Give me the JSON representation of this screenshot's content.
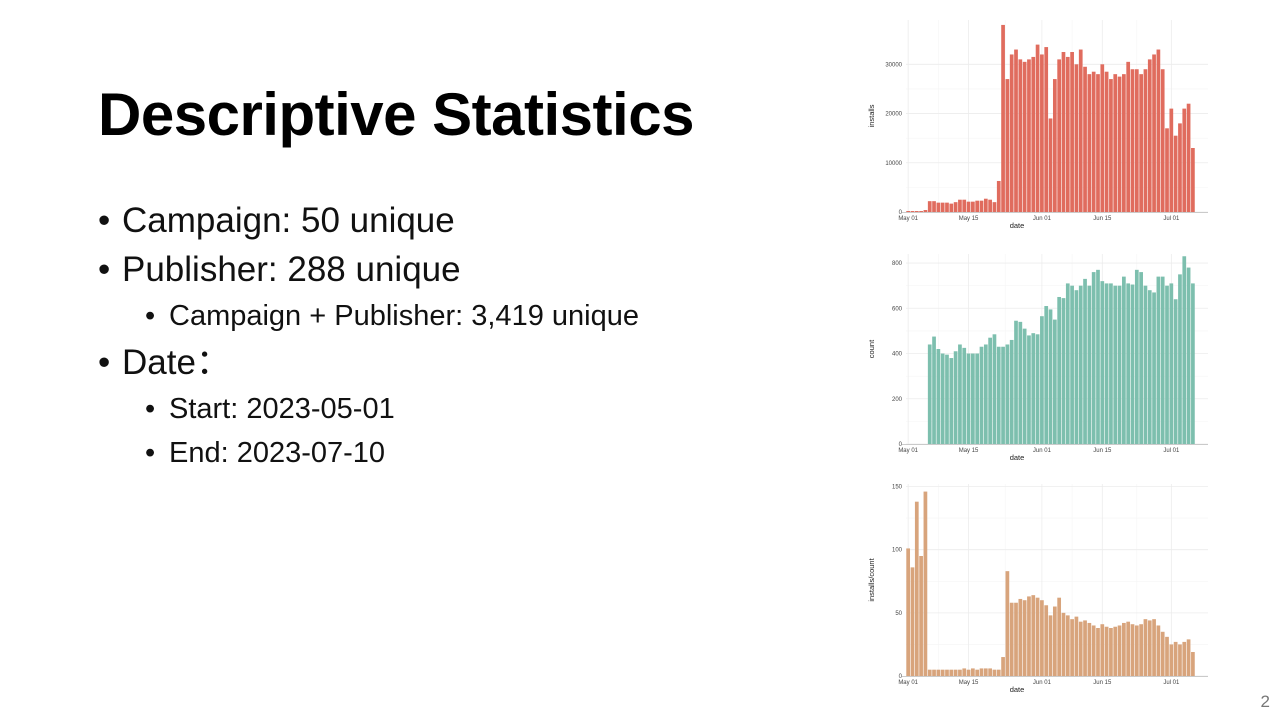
{
  "slide": {
    "title": "Descriptive Statistics",
    "page_number": "2",
    "bullets": [
      {
        "level": 1,
        "text": "Campaign: 50 unique"
      },
      {
        "level": 1,
        "text": "Publisher: 288 unique"
      },
      {
        "level": 2,
        "text": "Campaign + Publisher: 3,419 unique"
      },
      {
        "level": 1,
        "text": "Date："
      },
      {
        "level": 2,
        "text": "Start: 2023-05-01"
      },
      {
        "level": 2,
        "text": "End: 2023-07-10"
      }
    ],
    "bullet_glyph": "•"
  },
  "chart_data": [
    {
      "type": "bar",
      "xlabel": "date",
      "ylabel": "installs",
      "color": "#E06C5E",
      "ylim": [
        0,
        39000
      ],
      "yticks": [
        0,
        10000,
        20000,
        30000
      ],
      "xticks": [
        {
          "day": 0,
          "label": "May 01"
        },
        {
          "day": 14,
          "label": "May 15"
        },
        {
          "day": 31,
          "label": "Jun 01"
        },
        {
          "day": 45,
          "label": "Jun 15"
        },
        {
          "day": 61,
          "label": "Jul 01"
        }
      ],
      "start_day": 0,
      "values": [
        200,
        200,
        200,
        200,
        400,
        2200,
        2200,
        1900,
        1900,
        1900,
        1700,
        2000,
        2500,
        2500,
        2100,
        2100,
        2300,
        2300,
        2700,
        2500,
        2000,
        6300,
        38000,
        27000,
        32000,
        33000,
        31000,
        30500,
        31000,
        31500,
        34000,
        32000,
        33500,
        19000,
        27000,
        31000,
        32500,
        31500,
        32500,
        30000,
        33000,
        29500,
        28000,
        28500,
        28000,
        30000,
        28500,
        27000,
        28000,
        27500,
        28000,
        30500,
        29000,
        29000,
        28000,
        29000,
        31000,
        32000,
        33000,
        29000,
        17000,
        21000,
        15500,
        18000,
        21000,
        22000,
        13000
      ]
    },
    {
      "type": "bar",
      "xlabel": "date",
      "ylabel": "count",
      "color": "#7DBFAE",
      "ylim": [
        0,
        840
      ],
      "yticks": [
        0,
        200,
        400,
        600,
        800
      ],
      "xticks": [
        {
          "day": 0,
          "label": "May 01"
        },
        {
          "day": 14,
          "label": "May 15"
        },
        {
          "day": 31,
          "label": "Jun 01"
        },
        {
          "day": 45,
          "label": "Jun 15"
        },
        {
          "day": 61,
          "label": "Jul 01"
        }
      ],
      "start_day": 5,
      "values": [
        440,
        475,
        420,
        400,
        395,
        380,
        410,
        440,
        425,
        400,
        400,
        400,
        430,
        440,
        470,
        485,
        430,
        430,
        440,
        460,
        545,
        540,
        510,
        480,
        490,
        485,
        565,
        610,
        595,
        550,
        650,
        645,
        710,
        700,
        680,
        700,
        730,
        700,
        760,
        770,
        720,
        710,
        710,
        700,
        700,
        740,
        710,
        705,
        770,
        760,
        700,
        680,
        670,
        740,
        740,
        700,
        710,
        640,
        750,
        830,
        780,
        710
      ]
    },
    {
      "type": "bar",
      "xlabel": "date",
      "ylabel": "installs/count",
      "color": "#D8A47C",
      "ylim": [
        0,
        152
      ],
      "yticks": [
        0,
        50,
        100,
        150
      ],
      "xticks": [
        {
          "day": 0,
          "label": "May 01"
        },
        {
          "day": 14,
          "label": "May 15"
        },
        {
          "day": 31,
          "label": "Jun 01"
        },
        {
          "day": 45,
          "label": "Jun 15"
        },
        {
          "day": 61,
          "label": "Jul 01"
        }
      ],
      "start_day": 0,
      "values": [
        101,
        86,
        138,
        95,
        146,
        5,
        5,
        5,
        5,
        5,
        5,
        5,
        5,
        6,
        5,
        6,
        5,
        6,
        6,
        6,
        5,
        5,
        15,
        83,
        58,
        58,
        61,
        60,
        63,
        64,
        62,
        60,
        56,
        48,
        55,
        62,
        50,
        48,
        45,
        47,
        43,
        44,
        42,
        40,
        38,
        41,
        39,
        38,
        39,
        40,
        42,
        43,
        41,
        40,
        41,
        45,
        44,
        45,
        40,
        35,
        31,
        25,
        27,
        25,
        27,
        29,
        19
      ]
    }
  ]
}
